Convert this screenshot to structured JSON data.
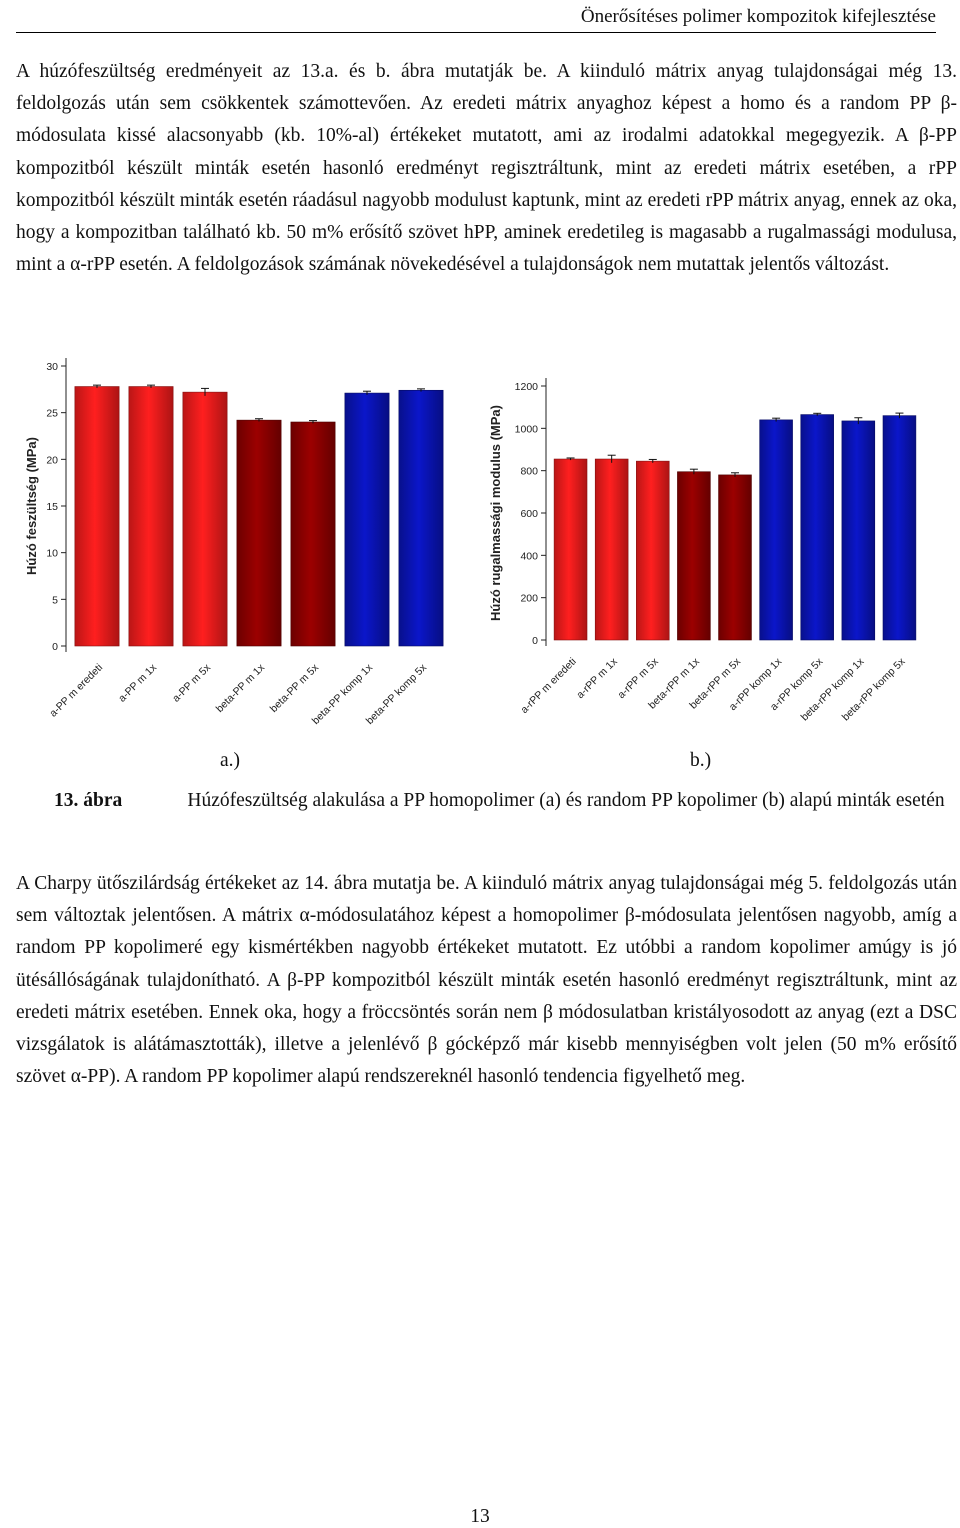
{
  "header": {
    "running_title": "Önerősítéses polimer kompozitok kifejlesztése"
  },
  "paragraphs": {
    "p1": "A húzófeszültség eredményeit az 13.a. és b. ábra mutatják be. A kiinduló mátrix anyag tulajdonságai még 13. feldolgozás után sem csökkentek számottevően. Az eredeti mátrix anyaghoz képest a homo és a random PP β-módosulata kissé alacsonyabb (kb. 10%-al) értékeket mutatott, ami az irodalmi adatokkal megegyezik. A β-PP kompozitból készült minták esetén hasonló eredményt regisztráltunk, mint az eredeti mátrix esetében, a rPP kompozitból készült minták esetén ráadásul nagyobb modulust kaptunk, mint az eredeti rPP mátrix anyag, ennek az oka, hogy a kompozitban található kb. 50 m% erősítő szövet hPP, aminek eredetileg is magasabb a rugalmassági modulusa, mint a α-rPP esetén. A feldolgozások számának növekedésével a tulajdonságok nem mutattak jelentős változást.",
    "p2": "A Charpy ütőszilárdság értékeket az 14. ábra mutatja be. A kiinduló mátrix anyag tulajdonságai még 5. feldolgozás után sem változtak jelentősen. A mátrix α-módosulatához képest a homopolimer β-módosulata jelentősen nagyobb, amíg a random PP kopolimeré egy kismértékben nagyobb értékeket mutatott. Ez utóbbi a random kopolimer amúgy is jó ütésállóságának tulajdonítható. A β-PP kompozitból készült minták esetén hasonló eredményt regisztráltunk, mint az eredeti mátrix esetében. Ennek oka, hogy a fröccsöntés során nem β módosulatban kristályosodott az anyag (ezt a DSC vizsgálatok is alátámasztották), illetve a jelenlévő β gócképző már kisebb mennyiségben volt jelen (50 m% erősítő szövet α-PP). A random PP kopolimer alapú rendszereknél hasonló tendencia figyelhető meg."
  },
  "figure": {
    "sub_label_a": "a.)",
    "sub_label_b": "b.)",
    "caption_number": "13. ábra",
    "caption_text": "Húzófeszültség alakulása a PP homopolimer (a) és random PP kopolimer (b) alapú minták esetén"
  },
  "chart_data": [
    {
      "type": "bar",
      "ylabel": "Húzó feszültség (MPa)",
      "xlabel": "",
      "ylim": [
        0,
        30
      ],
      "yticks": [
        0,
        5,
        10,
        15,
        20,
        25,
        30
      ],
      "grid": false,
      "categories": [
        "a-PP m eredeti",
        "a-PP m 1x",
        "a-PP m 5x",
        "beta-PP m 1x",
        "beta-PP m 5x",
        "beta-PP komp 1x",
        "beta-PP komp 5x"
      ],
      "values": [
        27.8,
        27.8,
        27.2,
        24.2,
        24.0,
        27.1,
        27.4
      ],
      "errors": [
        0.15,
        0.15,
        0.4,
        0.15,
        0.15,
        0.2,
        0.15
      ],
      "colors": [
        "#ef1c1c",
        "#ef1c1c",
        "#ef1c1c",
        "#8b0000",
        "#8b0000",
        "#0a14b4",
        "#0a14b4"
      ]
    },
    {
      "type": "bar",
      "ylabel": "Húzó rugalmassági modulus (MPa)",
      "xlabel": "",
      "ylim": [
        0,
        1200
      ],
      "yticks": [
        0,
        200,
        400,
        600,
        800,
        1000,
        1200
      ],
      "grid": false,
      "categories": [
        "a-rPP m eredeti",
        "a-rPP m 1x",
        "a-rPP m 5x",
        "beta-rPP m 1x",
        "beta-rPP m 5x",
        "a-rPP komp 1x",
        "a-rPP komp 5x",
        "beta-rPP komp 1x",
        "beta-rPP komp 5x"
      ],
      "values": [
        855,
        855,
        845,
        795,
        780,
        1040,
        1065,
        1035,
        1060
      ],
      "errors": [
        5,
        18,
        8,
        12,
        10,
        8,
        6,
        15,
        12
      ],
      "colors": [
        "#ef1c1c",
        "#ef1c1c",
        "#ef1c1c",
        "#8b0000",
        "#8b0000",
        "#0a14b4",
        "#0a14b4",
        "#0a14b4",
        "#0a14b4"
      ]
    }
  ],
  "page_number": "13"
}
